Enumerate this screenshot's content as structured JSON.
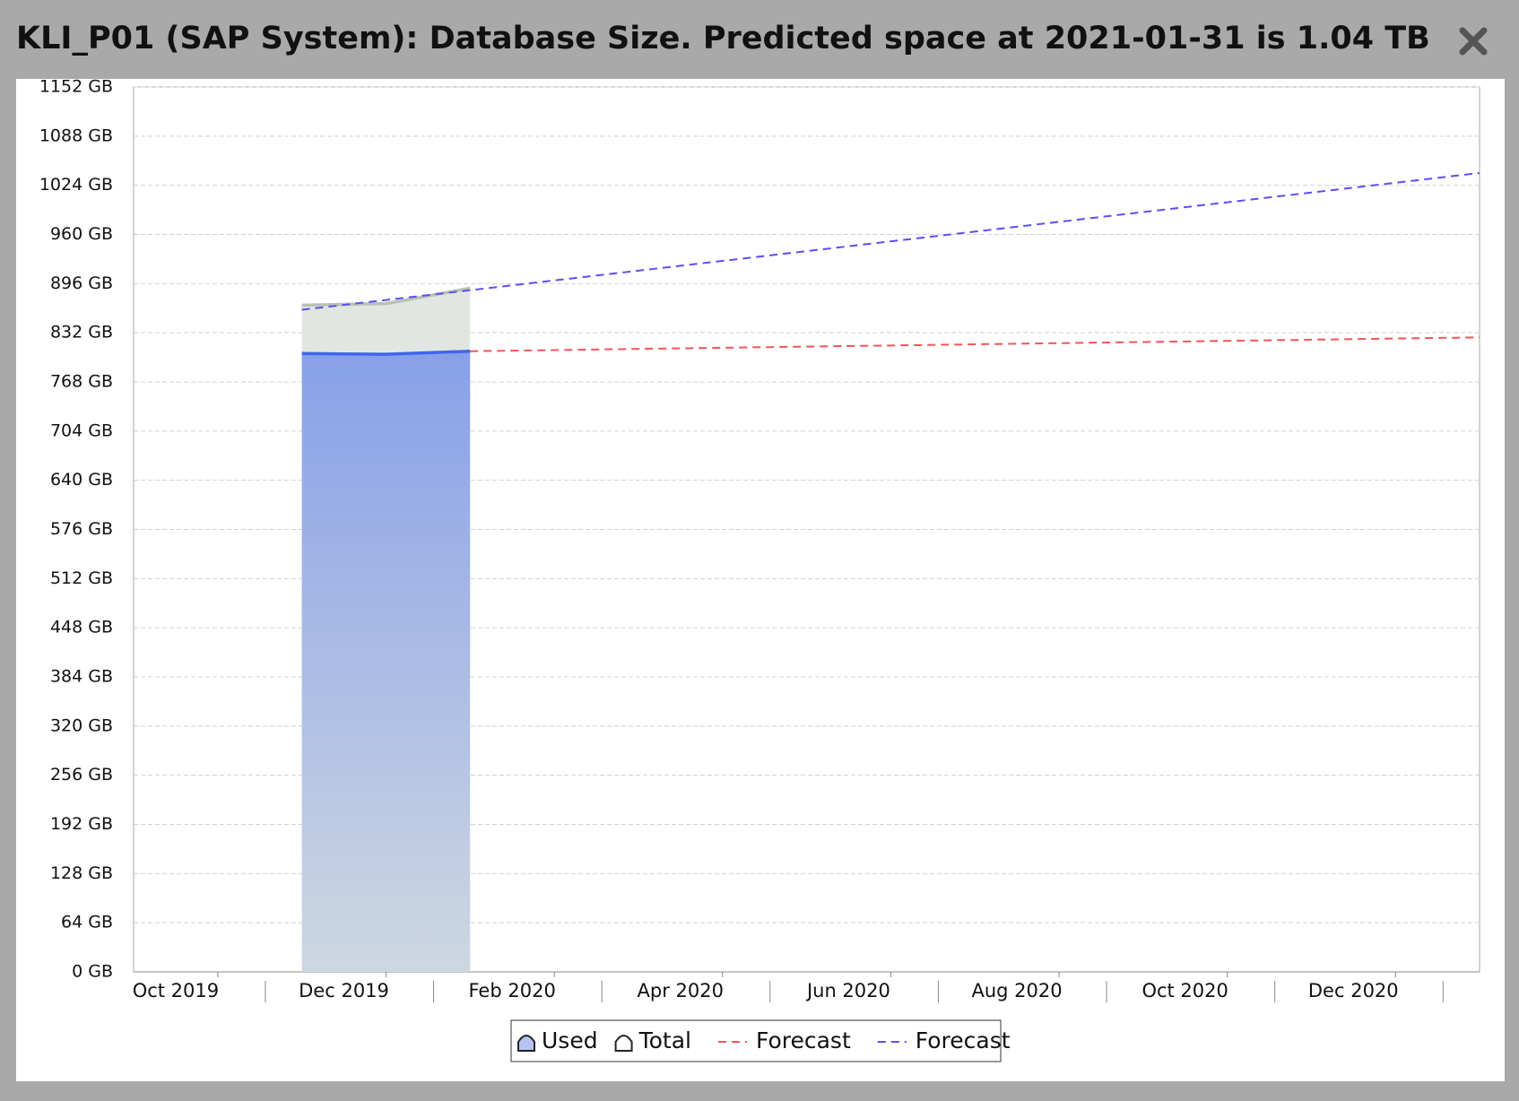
{
  "chart_data": {
    "type": "area",
    "title": "KLI_P01 (SAP System): Database Size. Predicted space at 2021-01-31 is 1.04 TB",
    "xlim": [
      "2019-09",
      "2021-01"
    ],
    "xticks": [
      {
        "value": "2019-10",
        "label": "Oct 2019"
      },
      {
        "value": "2019-12",
        "label": "Dec 2019"
      },
      {
        "value": "2020-02",
        "label": "Feb 2020"
      },
      {
        "value": "2020-04",
        "label": "Apr 2020"
      },
      {
        "value": "2020-06",
        "label": "Jun 2020"
      },
      {
        "value": "2020-08",
        "label": "Aug 2020"
      },
      {
        "value": "2020-10",
        "label": "Oct 2020"
      },
      {
        "value": "2020-12",
        "label": "Dec 2020"
      }
    ],
    "ylim": [
      0,
      1152
    ],
    "yticks": [
      {
        "value": 0,
        "label": "0 GB"
      },
      {
        "value": 64,
        "label": "64 GB"
      },
      {
        "value": 128,
        "label": "128 GB"
      },
      {
        "value": 192,
        "label": "192 GB"
      },
      {
        "value": 256,
        "label": "256 GB"
      },
      {
        "value": 320,
        "label": "320 GB"
      },
      {
        "value": 384,
        "label": "384 GB"
      },
      {
        "value": 448,
        "label": "448 GB"
      },
      {
        "value": 512,
        "label": "512 GB"
      },
      {
        "value": 576,
        "label": "576 GB"
      },
      {
        "value": 640,
        "label": "640 GB"
      },
      {
        "value": 704,
        "label": "704 GB"
      },
      {
        "value": 768,
        "label": "768 GB"
      },
      {
        "value": 832,
        "label": "832 GB"
      },
      {
        "value": 896,
        "label": "896 GB"
      },
      {
        "value": 960,
        "label": "960 GB"
      },
      {
        "value": 1024,
        "label": "1024 GB"
      },
      {
        "value": 1088,
        "label": "1088 GB"
      },
      {
        "value": 1152,
        "label": "1152 GB"
      }
    ],
    "grid": true,
    "series": [
      {
        "name": "Total",
        "type": "area",
        "color": "#b7c1b6",
        "x": [
          "2019-11",
          "2019-12",
          "2020-01"
        ],
        "values": [
          868,
          870,
          890
        ]
      },
      {
        "name": "Used",
        "type": "area",
        "color": "#3f66ee",
        "x": [
          "2019-11",
          "2019-12",
          "2020-01"
        ],
        "values": [
          805,
          804,
          808
        ]
      },
      {
        "name": "Forecast",
        "type": "dashed",
        "color": "#f0555a",
        "x": [
          "2020-01",
          "2021-01"
        ],
        "values": [
          808,
          826
        ]
      },
      {
        "name": "Forecast",
        "type": "dashed",
        "color": "#5b4ef0",
        "x": [
          "2019-11",
          "2021-01"
        ],
        "values": [
          862,
          1040
        ]
      }
    ],
    "legend_order": [
      1,
      0,
      2,
      3
    ]
  }
}
